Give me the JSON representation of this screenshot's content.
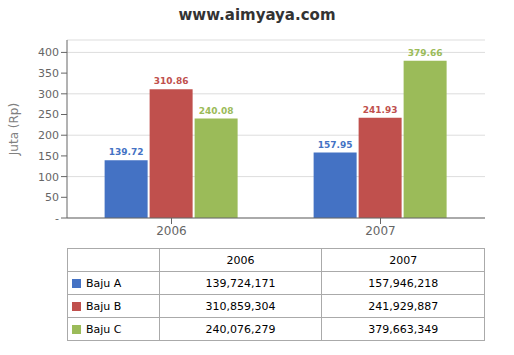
{
  "chart_data": {
    "type": "bar",
    "title": "www.aimyaya.com",
    "y_label": "Juta (Rp)",
    "categories": [
      "2006",
      "2007"
    ],
    "series": [
      {
        "name": "Baju A",
        "color": "#4472C4",
        "values": [
          139.72,
          157.95
        ],
        "table_values": [
          "139,724,171",
          "157,946,218"
        ]
      },
      {
        "name": "Baju B",
        "color": "#C0504D",
        "values": [
          310.86,
          241.93
        ],
        "table_values": [
          "310,859,304",
          "241,929,887"
        ]
      },
      {
        "name": "Baju C",
        "color": "#9BBB59",
        "values": [
          240.08,
          379.66
        ],
        "table_values": [
          "240,076,279",
          "379,663,349"
        ]
      }
    ],
    "ylim": [
      0,
      430
    ],
    "yticks": [
      {
        "value": 0,
        "label": "-"
      },
      50,
      100,
      150,
      200,
      250,
      300,
      350,
      400
    ],
    "grid": true,
    "data_labels": true
  }
}
